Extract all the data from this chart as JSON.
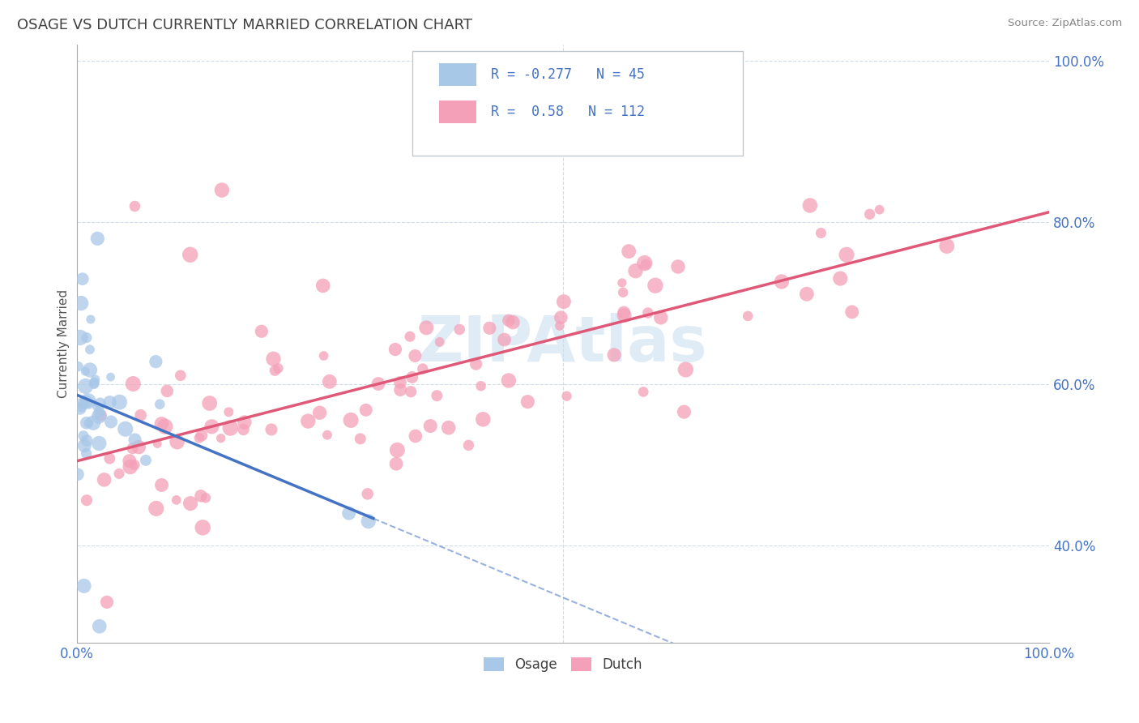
{
  "title": "OSAGE VS DUTCH CURRENTLY MARRIED CORRELATION CHART",
  "source": "Source: ZipAtlas.com",
  "ylabel": "Currently Married",
  "watermark": "ZIPAtlas",
  "legend_osage_r": -0.277,
  "legend_osage_n": 45,
  "legend_dutch_r": 0.58,
  "legend_dutch_n": 112,
  "osage_color": "#a8c8e8",
  "dutch_color": "#f4a0b8",
  "osage_line_color": "#4472c4",
  "dutch_line_color": "#e05878",
  "legend_text_color": "#4472c4",
  "title_color": "#404040",
  "axis_tick_color": "#4472c4",
  "grid_color": "#d0dce8",
  "background_color": "#ffffff",
  "xlim": [
    0.0,
    1.0
  ],
  "ylim": [
    0.28,
    1.02
  ],
  "yticks": [
    0.4,
    0.6,
    0.8,
    1.0
  ],
  "ytick_labels": [
    "40.0%",
    "60.0%",
    "80.0%",
    "100.0%"
  ]
}
